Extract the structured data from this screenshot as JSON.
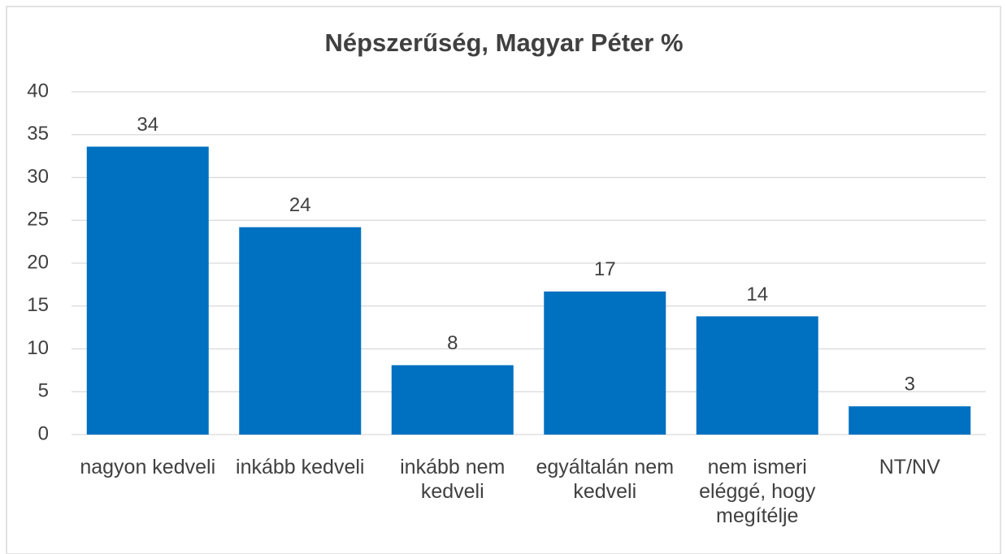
{
  "chart_data": {
    "type": "bar",
    "title": "Népszerűség, Magyar Péter %",
    "categories": [
      "nagyon kedveli",
      "inkább kedveli",
      "inkább nem kedveli",
      "egyáltalán nem kedveli",
      "nem ismeri eléggé, hogy megítélje",
      "NT/NV"
    ],
    "values": [
      33.6,
      24.2,
      8.1,
      16.7,
      13.8,
      3.3
    ],
    "value_labels": [
      "34",
      "24",
      "8",
      "17",
      "14",
      "3"
    ],
    "color": "#0070c0",
    "ylim": [
      0,
      40
    ],
    "yticks": [
      0,
      5,
      10,
      15,
      20,
      25,
      30,
      35,
      40
    ],
    "grid": true
  }
}
